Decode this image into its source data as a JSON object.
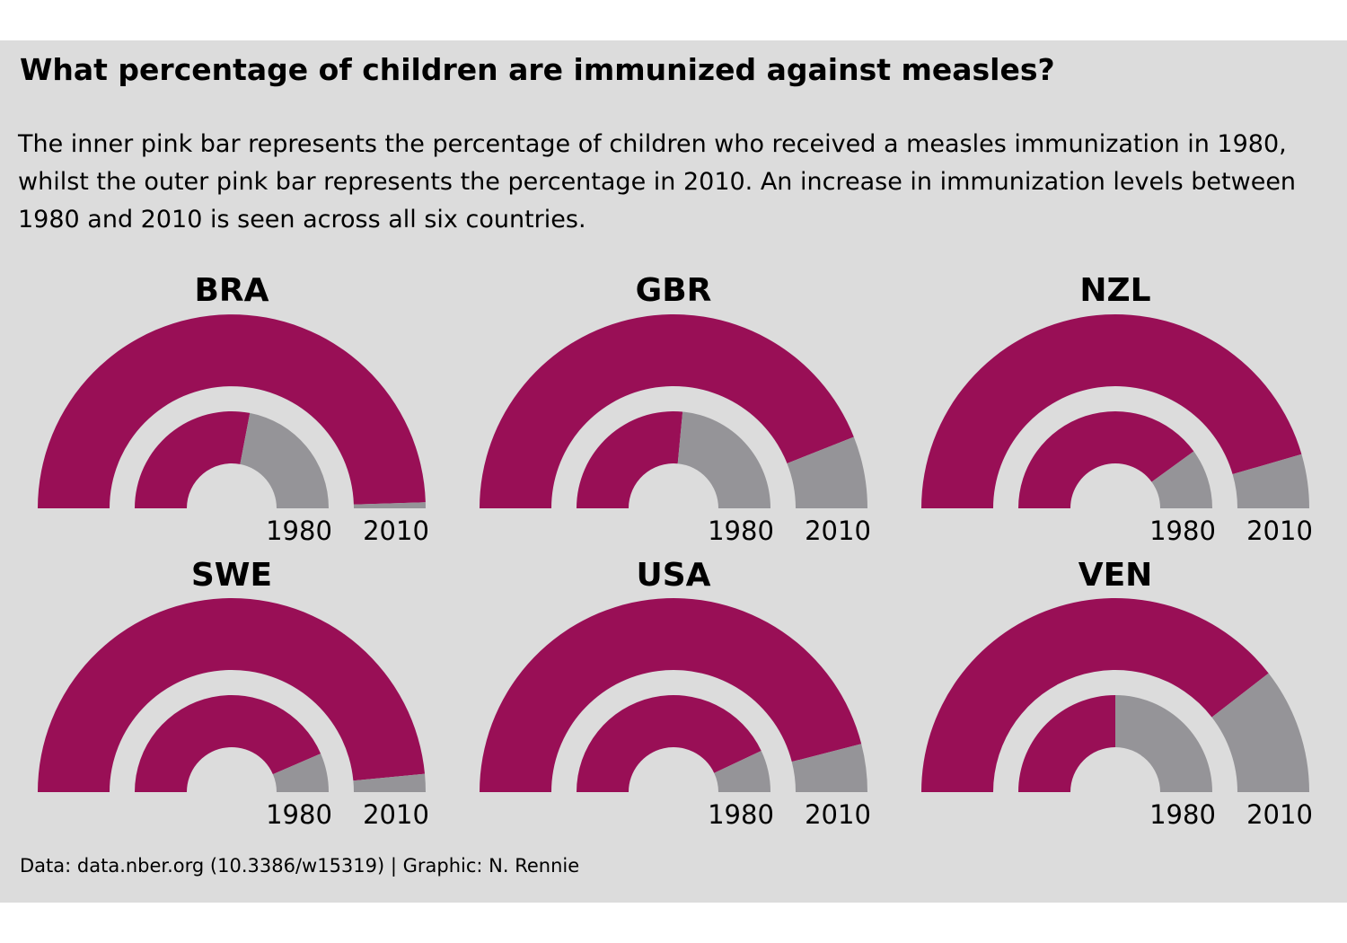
{
  "title": "What percentage of children are immunized against measles?",
  "subtitle": "The inner pink bar represents the percentage of children who received a measles immunization in 1980, whilst the outer pink bar represents the percentage in 2010. An increase in immunization levels between 1980 and 2010 is seen across all six countries.",
  "caption": "Data: data.nber.org (10.3386/w15319) | Graphic: N. Rennie",
  "colors": {
    "background": "#dcdcdc",
    "immunized": "#990f56",
    "remainder": "#959498"
  },
  "chart_data": {
    "type": "gauge",
    "unit": "%",
    "range": [
      0,
      100
    ],
    "series_years": [
      "1980",
      "2010"
    ],
    "panels": [
      {
        "country": "BRA",
        "values": {
          "1980": 56,
          "2010": 99
        }
      },
      {
        "country": "GBR",
        "values": {
          "1980": 53,
          "2010": 88
        }
      },
      {
        "country": "NZL",
        "values": {
          "1980": 80,
          "2010": 91
        }
      },
      {
        "country": "SWE",
        "values": {
          "1980": 87,
          "2010": 97
        }
      },
      {
        "country": "USA",
        "values": {
          "1980": 86,
          "2010": 92
        }
      },
      {
        "country": "VEN",
        "values": {
          "1980": 50,
          "2010": 79
        }
      }
    ]
  }
}
